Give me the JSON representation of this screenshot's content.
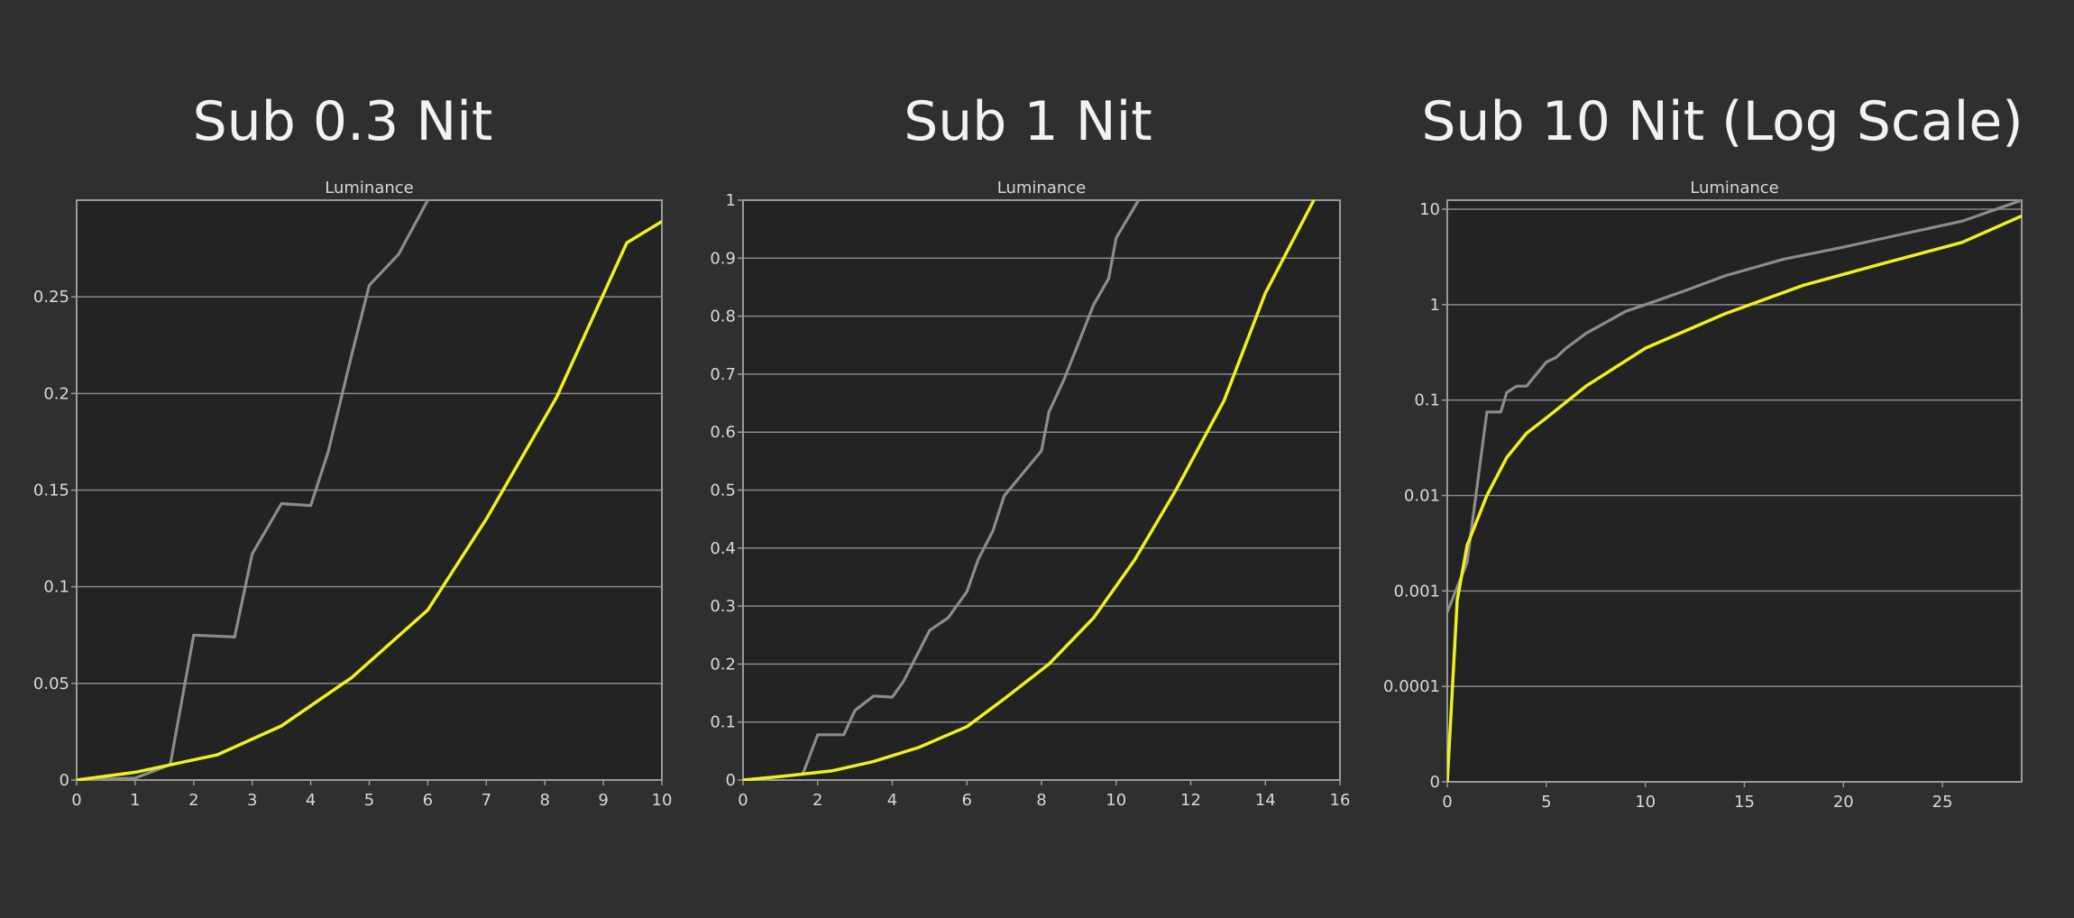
{
  "chart_data": [
    {
      "type": "line",
      "title": "Sub 0.3 Nit",
      "subtitle": "Luminance",
      "xlim": [
        0,
        10
      ],
      "ylim": [
        0,
        0.3
      ],
      "x_ticks": [
        "0",
        "1",
        "2",
        "3",
        "4",
        "5",
        "6",
        "7",
        "8",
        "9",
        "10"
      ],
      "y_ticks": [
        "0",
        "0.05",
        "0.1",
        "0.15",
        "0.2",
        "0.25"
      ],
      "y_tick_values": [
        0,
        0.05,
        0.1,
        0.15,
        0.2,
        0.25
      ],
      "grid": true,
      "series": [
        {
          "color": "#8c8c8c",
          "x": [
            0,
            1,
            1.6,
            2,
            2.7,
            3,
            3.5,
            4,
            4.3,
            4.7,
            5,
            5.5,
            6
          ],
          "y": [
            0,
            0.001,
            0.008,
            0.075,
            0.074,
            0.117,
            0.143,
            0.142,
            0.17,
            0.22,
            0.256,
            0.272,
            0.3
          ]
        },
        {
          "color": "#f0f020",
          "x": [
            0,
            1,
            2.4,
            3.5,
            4.7,
            6,
            7,
            8.2,
            9.4,
            10
          ],
          "y": [
            0,
            0.004,
            0.013,
            0.028,
            0.053,
            0.088,
            0.135,
            0.198,
            0.278,
            0.289
          ]
        }
      ]
    },
    {
      "type": "line",
      "title": "Sub 1 Nit",
      "subtitle": "Luminance",
      "xlim": [
        0,
        16
      ],
      "ylim": [
        0,
        1
      ],
      "x_ticks": [
        "0",
        "2",
        "4",
        "6",
        "8",
        "10",
        "12",
        "14",
        "16"
      ],
      "y_ticks": [
        "0",
        "0.1",
        "0.2",
        "0.3",
        "0.4",
        "0.5",
        "0.6",
        "0.7",
        "0.8",
        "0.9",
        "1"
      ],
      "y_tick_values": [
        0,
        0.1,
        0.2,
        0.3,
        0.4,
        0.5,
        0.6,
        0.7,
        0.8,
        0.9,
        1
      ],
      "grid": true,
      "series": [
        {
          "color": "#8c8c8c",
          "x": [
            0,
            1.6,
            2,
            2.7,
            3,
            3.5,
            4,
            4.3,
            5,
            5.5,
            6,
            6.3,
            6.7,
            7,
            8,
            8.2,
            8.6,
            9,
            9.4,
            9.8,
            10,
            10.6
          ],
          "y": [
            0,
            0.01,
            0.078,
            0.078,
            0.12,
            0.145,
            0.143,
            0.17,
            0.258,
            0.28,
            0.325,
            0.38,
            0.43,
            0.49,
            0.568,
            0.635,
            0.69,
            0.755,
            0.82,
            0.865,
            0.935,
            1
          ]
        },
        {
          "color": "#f0f020",
          "x": [
            0,
            1,
            2.4,
            3.5,
            4.7,
            6,
            7,
            8.2,
            9.4,
            10.5,
            11.6,
            12.9,
            14,
            15.3
          ],
          "y": [
            0,
            0.006,
            0.016,
            0.032,
            0.056,
            0.092,
            0.14,
            0.2,
            0.28,
            0.38,
            0.5,
            0.655,
            0.84,
            1
          ]
        }
      ]
    },
    {
      "type": "line",
      "title": "Sub 10 Nit (Log Scale)",
      "subtitle": "Luminance",
      "xlim": [
        0,
        29
      ],
      "ylim": [
        0,
        13
      ],
      "y_scale": "log",
      "x_ticks": [
        "0",
        "5",
        "10",
        "15",
        "20",
        "25"
      ],
      "y_ticks": [
        "0",
        "0.0001",
        "0.001",
        "0.01",
        "0.1",
        "1",
        "10"
      ],
      "y_tick_values": [
        0,
        0.0001,
        0.001,
        0.01,
        0.1,
        1,
        10
      ],
      "grid": true,
      "series": [
        {
          "color": "#8c8c8c",
          "x": [
            0,
            1,
            2,
            2.7,
            3,
            3.5,
            4,
            5,
            5.5,
            6,
            7,
            8,
            9,
            10,
            12,
            14,
            17,
            20,
            23,
            26,
            29
          ],
          "y": [
            0.0006,
            0.002,
            0.075,
            0.075,
            0.12,
            0.14,
            0.14,
            0.25,
            0.28,
            0.35,
            0.5,
            0.65,
            0.85,
            1,
            1.4,
            2,
            3,
            4,
            5.5,
            7.5,
            12.5
          ]
        },
        {
          "color": "#f0f020",
          "x": [
            0,
            0.5,
            1,
            2,
            3,
            4,
            5,
            7,
            10,
            14,
            18,
            22,
            26,
            29
          ],
          "y": [
            0,
            0.0008,
            0.003,
            0.01,
            0.025,
            0.045,
            0.065,
            0.14,
            0.35,
            0.8,
            1.6,
            2.7,
            4.5,
            8.5
          ]
        }
      ]
    }
  ]
}
